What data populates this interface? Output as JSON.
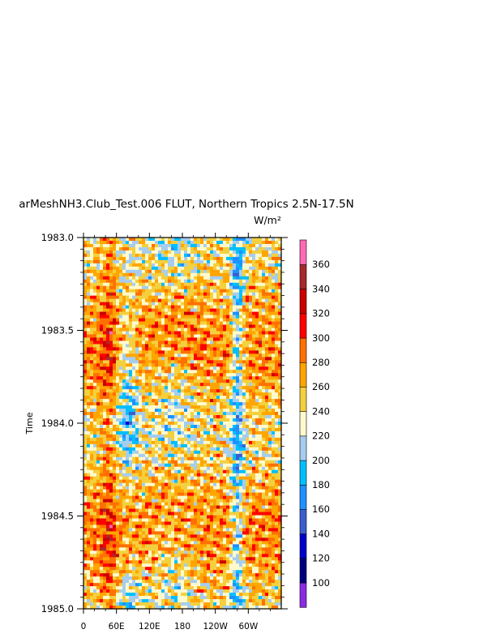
{
  "chart_data": {
    "type": "heatmap",
    "title": "arMeshNH3.Club_Test.006 FLUT, Northern Tropics 2.5N-17.5N",
    "units": "W/m²",
    "ylabel": "Time",
    "xlabel": "",
    "x_ticks": [
      "0",
      "60E",
      "120E",
      "180",
      "120W",
      "60W"
    ],
    "y_ticks": [
      "1983.0",
      "1983.5",
      "1984.0",
      "1984.5",
      "1985.0"
    ],
    "ylim": [
      1983.0,
      1985.0
    ],
    "colorbar": {
      "labels": [
        "100",
        "120",
        "140",
        "160",
        "180",
        "200",
        "220",
        "240",
        "260",
        "280",
        "300",
        "320",
        "340",
        "360"
      ],
      "levels": [
        100,
        120,
        140,
        160,
        180,
        200,
        220,
        240,
        260,
        280,
        300,
        320,
        340,
        360
      ],
      "colors": [
        "#8a2be2",
        "#00007f",
        "#0000cc",
        "#3a5fcd",
        "#1e90ff",
        "#00bfff",
        "#a6cdf0",
        "#fffacd",
        "#f4d03f",
        "#ffa500",
        "#ff7000",
        "#ff0000",
        "#cc0000",
        "#a52a2a",
        "#ff69b4"
      ]
    }
  }
}
